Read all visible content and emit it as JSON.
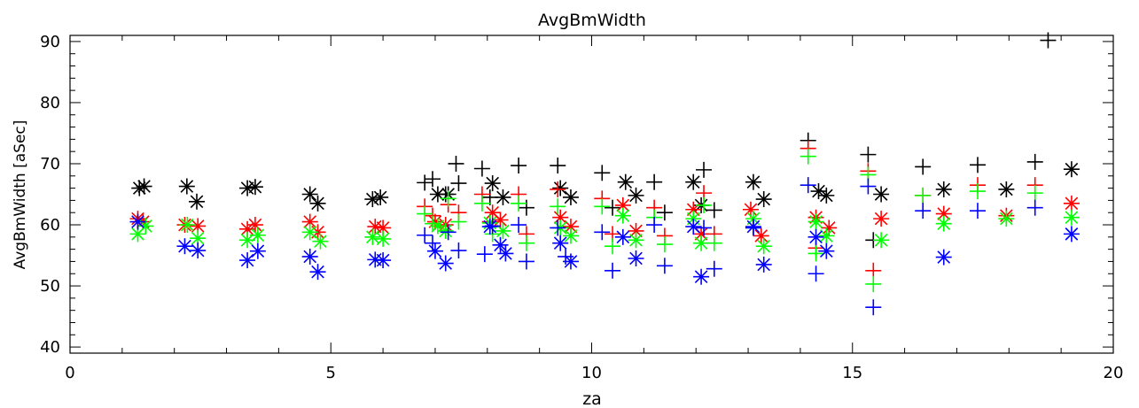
{
  "chart_data": {
    "type": "scatter",
    "title": "AvgBmWidth",
    "xlabel": "za",
    "ylabel": "AvgBmWidth  [aSec]",
    "xlim": [
      0,
      20
    ],
    "ylim": [
      39,
      91
    ],
    "x_ticks": [
      0,
      5,
      10,
      15,
      20
    ],
    "y_ticks": [
      40,
      50,
      60,
      70,
      80,
      90
    ],
    "grid": false,
    "legend": "none",
    "series": [
      {
        "color": "#000000",
        "marker": "asterisk",
        "points": [
          [
            1.33,
            66.0
          ],
          [
            1.42,
            66.3
          ],
          [
            2.24,
            66.3
          ],
          [
            2.43,
            63.8
          ],
          [
            3.4,
            66.0
          ],
          [
            3.55,
            66.2
          ],
          [
            4.6,
            65.0
          ],
          [
            4.75,
            63.5
          ],
          [
            5.8,
            64.2
          ],
          [
            5.95,
            64.5
          ],
          [
            7.05,
            65.0
          ],
          [
            7.25,
            65.0
          ],
          [
            8.1,
            66.8
          ],
          [
            8.3,
            64.5
          ],
          [
            9.4,
            66.0
          ],
          [
            9.6,
            64.5
          ],
          [
            10.65,
            67.0
          ],
          [
            10.85,
            64.8
          ],
          [
            11.95,
            67.0
          ],
          [
            12.1,
            63.2
          ],
          [
            13.1,
            67.0
          ],
          [
            13.3,
            64.2
          ],
          [
            14.35,
            65.5
          ],
          [
            14.5,
            64.8
          ],
          [
            15.55,
            65.0
          ],
          [
            16.75,
            65.8
          ],
          [
            17.95,
            65.8
          ],
          [
            19.2,
            69.1
          ]
        ]
      },
      {
        "color": "#000000",
        "marker": "plus",
        "points": [
          [
            6.8,
            66.9
          ],
          [
            6.95,
            67.5
          ],
          [
            7.2,
            65.0
          ],
          [
            7.4,
            70.0
          ],
          [
            7.45,
            66.8
          ],
          [
            7.9,
            69.2
          ],
          [
            8.05,
            64.5
          ],
          [
            8.6,
            69.7
          ],
          [
            8.75,
            62.8
          ],
          [
            9.35,
            69.7
          ],
          [
            10.2,
            68.5
          ],
          [
            10.4,
            62.8
          ],
          [
            11.2,
            67.0
          ],
          [
            11.4,
            62.0
          ],
          [
            12.15,
            69.0
          ],
          [
            12.35,
            62.4
          ],
          [
            14.15,
            73.8
          ],
          [
            15.3,
            71.5
          ],
          [
            15.4,
            57.5
          ],
          [
            16.35,
            69.5
          ],
          [
            17.4,
            69.8
          ],
          [
            18.5,
            70.3
          ],
          [
            18.75,
            90.2
          ]
        ]
      },
      {
        "color": "#ff0000",
        "marker": "asterisk",
        "points": [
          [
            1.3,
            61.0
          ],
          [
            1.4,
            60.5
          ],
          [
            2.2,
            60.0
          ],
          [
            2.45,
            59.8
          ],
          [
            3.4,
            59.3
          ],
          [
            3.55,
            60.0
          ],
          [
            4.6,
            60.5
          ],
          [
            4.75,
            58.8
          ],
          [
            5.85,
            59.7
          ],
          [
            6.0,
            59.5
          ],
          [
            7.0,
            60.5
          ],
          [
            7.2,
            60.0
          ],
          [
            8.1,
            62.0
          ],
          [
            8.25,
            60.8
          ],
          [
            9.4,
            61.2
          ],
          [
            9.6,
            59.7
          ],
          [
            10.6,
            63.2
          ],
          [
            10.85,
            59.0
          ],
          [
            11.95,
            62.5
          ],
          [
            12.1,
            58.5
          ],
          [
            13.05,
            62.5
          ],
          [
            13.25,
            58.2
          ],
          [
            14.3,
            61.2
          ],
          [
            14.55,
            59.5
          ],
          [
            15.55,
            61.0
          ],
          [
            16.75,
            61.8
          ],
          [
            17.95,
            61.5
          ],
          [
            19.2,
            63.5
          ]
        ]
      },
      {
        "color": "#ff0000",
        "marker": "plus",
        "points": [
          [
            6.8,
            63.0
          ],
          [
            6.95,
            61.5
          ],
          [
            7.25,
            63.3
          ],
          [
            7.45,
            62.0
          ],
          [
            7.9,
            65.0
          ],
          [
            8.05,
            60.5
          ],
          [
            8.6,
            65.0
          ],
          [
            8.75,
            58.5
          ],
          [
            9.35,
            65.8
          ],
          [
            10.2,
            64.3
          ],
          [
            10.4,
            58.5
          ],
          [
            11.2,
            62.8
          ],
          [
            11.4,
            58.2
          ],
          [
            12.15,
            65.2
          ],
          [
            12.35,
            58.5
          ],
          [
            14.15,
            72.5
          ],
          [
            14.3,
            56.2
          ],
          [
            15.3,
            68.8
          ],
          [
            15.4,
            52.5
          ],
          [
            16.35,
            64.8
          ],
          [
            17.4,
            66.5
          ],
          [
            18.5,
            66.5
          ]
        ]
      },
      {
        "color": "#00ff00",
        "marker": "asterisk",
        "points": [
          [
            1.3,
            58.5
          ],
          [
            1.45,
            59.8
          ],
          [
            2.25,
            60.0
          ],
          [
            2.45,
            57.8
          ],
          [
            3.4,
            57.5
          ],
          [
            3.6,
            58.3
          ],
          [
            4.6,
            58.8
          ],
          [
            4.8,
            57.3
          ],
          [
            5.8,
            58.0
          ],
          [
            6.0,
            57.7
          ],
          [
            7.05,
            59.8
          ],
          [
            7.2,
            59.0
          ],
          [
            8.05,
            60.3
          ],
          [
            8.3,
            59.0
          ],
          [
            9.4,
            59.5
          ],
          [
            9.6,
            58.2
          ],
          [
            10.6,
            61.5
          ],
          [
            10.85,
            57.5
          ],
          [
            11.95,
            61.0
          ],
          [
            12.1,
            57.0
          ],
          [
            13.1,
            61.0
          ],
          [
            13.3,
            56.5
          ],
          [
            14.3,
            60.5
          ],
          [
            14.5,
            58.2
          ],
          [
            15.55,
            57.5
          ],
          [
            16.75,
            60.2
          ],
          [
            17.95,
            61.0
          ],
          [
            19.2,
            61.2
          ]
        ]
      },
      {
        "color": "#00ff00",
        "marker": "plus",
        "points": [
          [
            6.8,
            61.8
          ],
          [
            6.95,
            60.2
          ],
          [
            7.25,
            64.3
          ],
          [
            7.45,
            60.5
          ],
          [
            7.9,
            63.5
          ],
          [
            8.1,
            58.5
          ],
          [
            8.6,
            63.5
          ],
          [
            8.75,
            57.0
          ],
          [
            9.35,
            63.0
          ],
          [
            10.2,
            63.0
          ],
          [
            10.4,
            56.5
          ],
          [
            11.2,
            61.2
          ],
          [
            11.4,
            56.8
          ],
          [
            12.15,
            63.2
          ],
          [
            12.35,
            57.0
          ],
          [
            14.15,
            71.2
          ],
          [
            14.3,
            55.3
          ],
          [
            15.3,
            68.2
          ],
          [
            15.4,
            50.3
          ],
          [
            16.35,
            64.8
          ],
          [
            17.4,
            65.5
          ],
          [
            18.5,
            65.2
          ]
        ]
      },
      {
        "color": "#0000ff",
        "marker": "asterisk",
        "points": [
          [
            1.3,
            60.5
          ],
          [
            2.2,
            56.5
          ],
          [
            2.45,
            55.8
          ],
          [
            3.4,
            54.2
          ],
          [
            3.6,
            55.7
          ],
          [
            4.6,
            54.8
          ],
          [
            4.75,
            52.3
          ],
          [
            5.85,
            54.3
          ],
          [
            6.0,
            54.2
          ],
          [
            7.0,
            55.7
          ],
          [
            7.2,
            53.7
          ],
          [
            8.05,
            59.7
          ],
          [
            8.25,
            56.7
          ],
          [
            8.35,
            55.3
          ],
          [
            9.4,
            57.0
          ],
          [
            9.6,
            54.0
          ],
          [
            10.6,
            58.0
          ],
          [
            10.85,
            54.5
          ],
          [
            11.95,
            59.7
          ],
          [
            12.1,
            51.5
          ],
          [
            13.1,
            59.7
          ],
          [
            13.3,
            53.5
          ],
          [
            14.3,
            58.0
          ],
          [
            14.5,
            55.7
          ],
          [
            16.75,
            54.7
          ],
          [
            19.2,
            58.5
          ]
        ]
      },
      {
        "color": "#0000ff",
        "marker": "plus",
        "points": [
          [
            6.8,
            58.3
          ],
          [
            6.95,
            57.0
          ],
          [
            7.25,
            58.8
          ],
          [
            7.45,
            55.8
          ],
          [
            7.95,
            55.2
          ],
          [
            8.1,
            59.8
          ],
          [
            8.6,
            60.0
          ],
          [
            8.75,
            54.0
          ],
          [
            9.35,
            59.5
          ],
          [
            9.5,
            54.8
          ],
          [
            10.2,
            58.8
          ],
          [
            10.4,
            52.5
          ],
          [
            11.2,
            60.0
          ],
          [
            11.4,
            53.3
          ],
          [
            12.15,
            59.5
          ],
          [
            12.35,
            52.8
          ],
          [
            13.1,
            59.5
          ],
          [
            14.15,
            66.5
          ],
          [
            14.3,
            52.0
          ],
          [
            15.3,
            66.3
          ],
          [
            15.4,
            46.5
          ],
          [
            16.35,
            62.3
          ],
          [
            17.4,
            62.3
          ],
          [
            18.5,
            62.8
          ]
        ]
      }
    ]
  }
}
